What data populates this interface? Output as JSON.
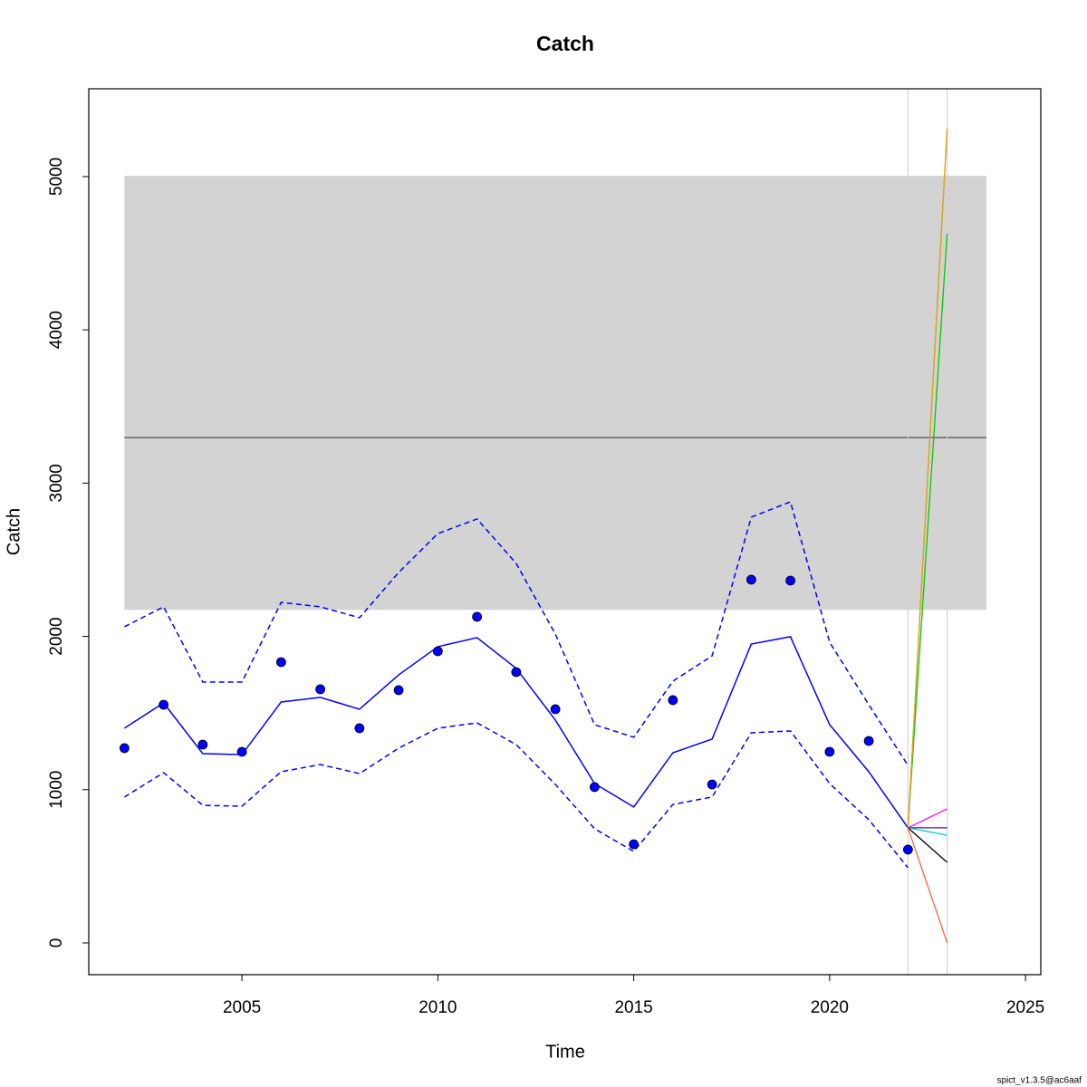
{
  "chart_data": {
    "type": "line",
    "title": "Catch",
    "x_label": "Time",
    "y_label": "Catch",
    "footnote": "spict_v1.3.5@ac6aaf",
    "xlim": [
      2001.09,
      2025.39
    ],
    "ylim": [
      -207,
      5573
    ],
    "xticks": [
      2005,
      2010,
      2015,
      2020,
      2025
    ],
    "yticks": [
      0,
      1000,
      2000,
      3000,
      4000,
      5000
    ],
    "x": [
      2002,
      2003,
      2004,
      2005,
      2006,
      2007,
      2008,
      2009,
      2010,
      2011,
      2012,
      2013,
      2014,
      2015,
      2016,
      2017,
      2018,
      2019,
      2020,
      2021,
      2022
    ],
    "series": [
      {
        "style": "points",
        "color": "#0000ff",
        "values": [
          1271,
          1554,
          1294,
          1247,
          1832,
          1655,
          1401,
          1649,
          1903,
          2128,
          1767,
          1525,
          1017,
          644,
          1584,
          1034,
          2370,
          2364,
          1247,
          1318,
          609
        ]
      },
      {
        "style": "solid",
        "color": "#0000ff",
        "values": [
          1401,
          1566,
          1235,
          1229,
          1572,
          1602,
          1525,
          1749,
          1933,
          1992,
          1791,
          1454,
          1040,
          887,
          1241,
          1330,
          1950,
          1998,
          1424,
          1117,
          751
        ]
      },
      {
        "style": "dashed",
        "color": "#0000ff",
        "values": [
          2063,
          2193,
          1702,
          1702,
          2222,
          2193,
          2122,
          2417,
          2671,
          2766,
          2476,
          2015,
          1424,
          1342,
          1708,
          1873,
          2778,
          2878,
          1962,
          1554,
          1158
        ]
      },
      {
        "style": "dashed",
        "color": "#0000ff",
        "values": [
          952,
          1111,
          898,
          892,
          1117,
          1164,
          1105,
          1271,
          1401,
          1436,
          1294,
          1034,
          745,
          597,
          904,
          952,
          1371,
          1383,
          1040,
          804,
          491
        ]
      }
    ],
    "reference_band": {
      "x": [
        2002,
        2024
      ],
      "low": 2173,
      "high": 5005,
      "color": "#d3d3d3"
    },
    "reference_line": {
      "value": 3298,
      "color": "#808080"
    },
    "vlines": [
      2022,
      2023
    ],
    "vline_color": "#d3d3d3",
    "forecast": {
      "x": [
        2022,
        2023
      ],
      "series": [
        {
          "color": "#00cd00",
          "values": [
            751,
            4628
          ]
        },
        {
          "color": "#ff7f00",
          "values": [
            751,
            5313
          ]
        },
        {
          "color": "#daa520",
          "values": [
            751,
            5313
          ]
        },
        {
          "color": "#ff00ff",
          "values": [
            751,
            875
          ]
        },
        {
          "color": "#551a8b",
          "values": [
            751,
            751
          ]
        },
        {
          "color": "#00cdcd",
          "values": [
            751,
            703
          ]
        },
        {
          "color": "#000000",
          "values": [
            751,
            526
          ]
        },
        {
          "color": "#ff6347",
          "values": [
            751,
            0
          ]
        }
      ]
    }
  }
}
